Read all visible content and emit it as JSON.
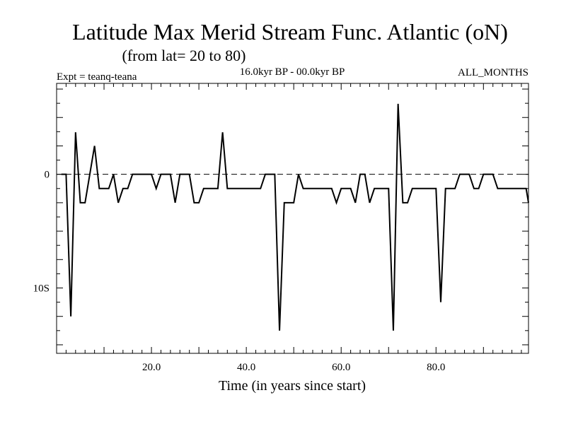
{
  "chart_data": {
    "type": "line",
    "title": "Latitude Max Merid Stream Func. Atlantic (oN)",
    "subtitle": "(from lat= 20 to 80)",
    "experiment": "Expt = teanq-teana",
    "period": "16.0kyr BP - 00.0kyr BP",
    "season": "ALL_MONTHS",
    "xlabel": "Time (in years since start)",
    "ylabel": "",
    "xlim": [
      0,
      99.5
    ],
    "ylim": [
      -15.75,
      8.0
    ],
    "x_ticks": [
      20,
      40,
      60,
      80
    ],
    "x_tick_labels": [
      "20.0",
      "40.0",
      "60.0",
      "80.0"
    ],
    "y_ticks": [
      0,
      -10
    ],
    "y_tick_labels": [
      "0",
      "10S"
    ],
    "zero_line": "dashed",
    "series": [
      {
        "name": "teanq-teana",
        "x": [
          1,
          2,
          3,
          4,
          5,
          6,
          7,
          8,
          9,
          10,
          11,
          12,
          13,
          14,
          15,
          16,
          17,
          18,
          19,
          20,
          21,
          22,
          23,
          24,
          25,
          26,
          27,
          28,
          29,
          30,
          31,
          32,
          33,
          34,
          35,
          36,
          37,
          38,
          39,
          40,
          41,
          42,
          43,
          44,
          45,
          46,
          47,
          48,
          49,
          50,
          51,
          52,
          53,
          54,
          55,
          56,
          57,
          58,
          59,
          60,
          61,
          62,
          63,
          64,
          65,
          66,
          67,
          68,
          69,
          70,
          71,
          72,
          73,
          74,
          75,
          76,
          77,
          78,
          79,
          80,
          81,
          82,
          83,
          84,
          85,
          86,
          87,
          88,
          89,
          90,
          91,
          92,
          93,
          94,
          95,
          96,
          97,
          98,
          99,
          100
        ],
        "values": [
          0,
          0,
          -12.5,
          3.7,
          -2.5,
          -2.5,
          0,
          2.5,
          -1.25,
          -1.25,
          -1.25,
          0,
          -2.5,
          -1.25,
          -1.25,
          0,
          0,
          0,
          0,
          0,
          -1.25,
          0,
          0,
          0,
          -2.5,
          0,
          0,
          0,
          -2.5,
          -2.5,
          -1.25,
          -1.25,
          -1.25,
          -1.25,
          3.7,
          -1.25,
          -1.25,
          -1.25,
          -1.25,
          -1.25,
          -1.25,
          -1.25,
          -1.25,
          0,
          0,
          0,
          -13.75,
          -2.5,
          -2.5,
          -2.5,
          0,
          -1.25,
          -1.25,
          -1.25,
          -1.25,
          -1.25,
          -1.25,
          -1.25,
          -2.5,
          -1.25,
          -1.25,
          -1.25,
          -2.5,
          0,
          0,
          -2.5,
          -1.25,
          -1.25,
          -1.25,
          -1.25,
          -13.75,
          6.2,
          -2.5,
          -2.5,
          -1.25,
          -1.25,
          -1.25,
          -1.25,
          -1.25,
          -1.25,
          -11.25,
          -1.25,
          -1.25,
          -1.25,
          0,
          0,
          0,
          -1.25,
          -1.25,
          0,
          0,
          0,
          -1.25,
          -1.25,
          -1.25,
          -1.25,
          -1.25,
          -1.25,
          -1.25,
          -2.5
        ]
      }
    ]
  }
}
